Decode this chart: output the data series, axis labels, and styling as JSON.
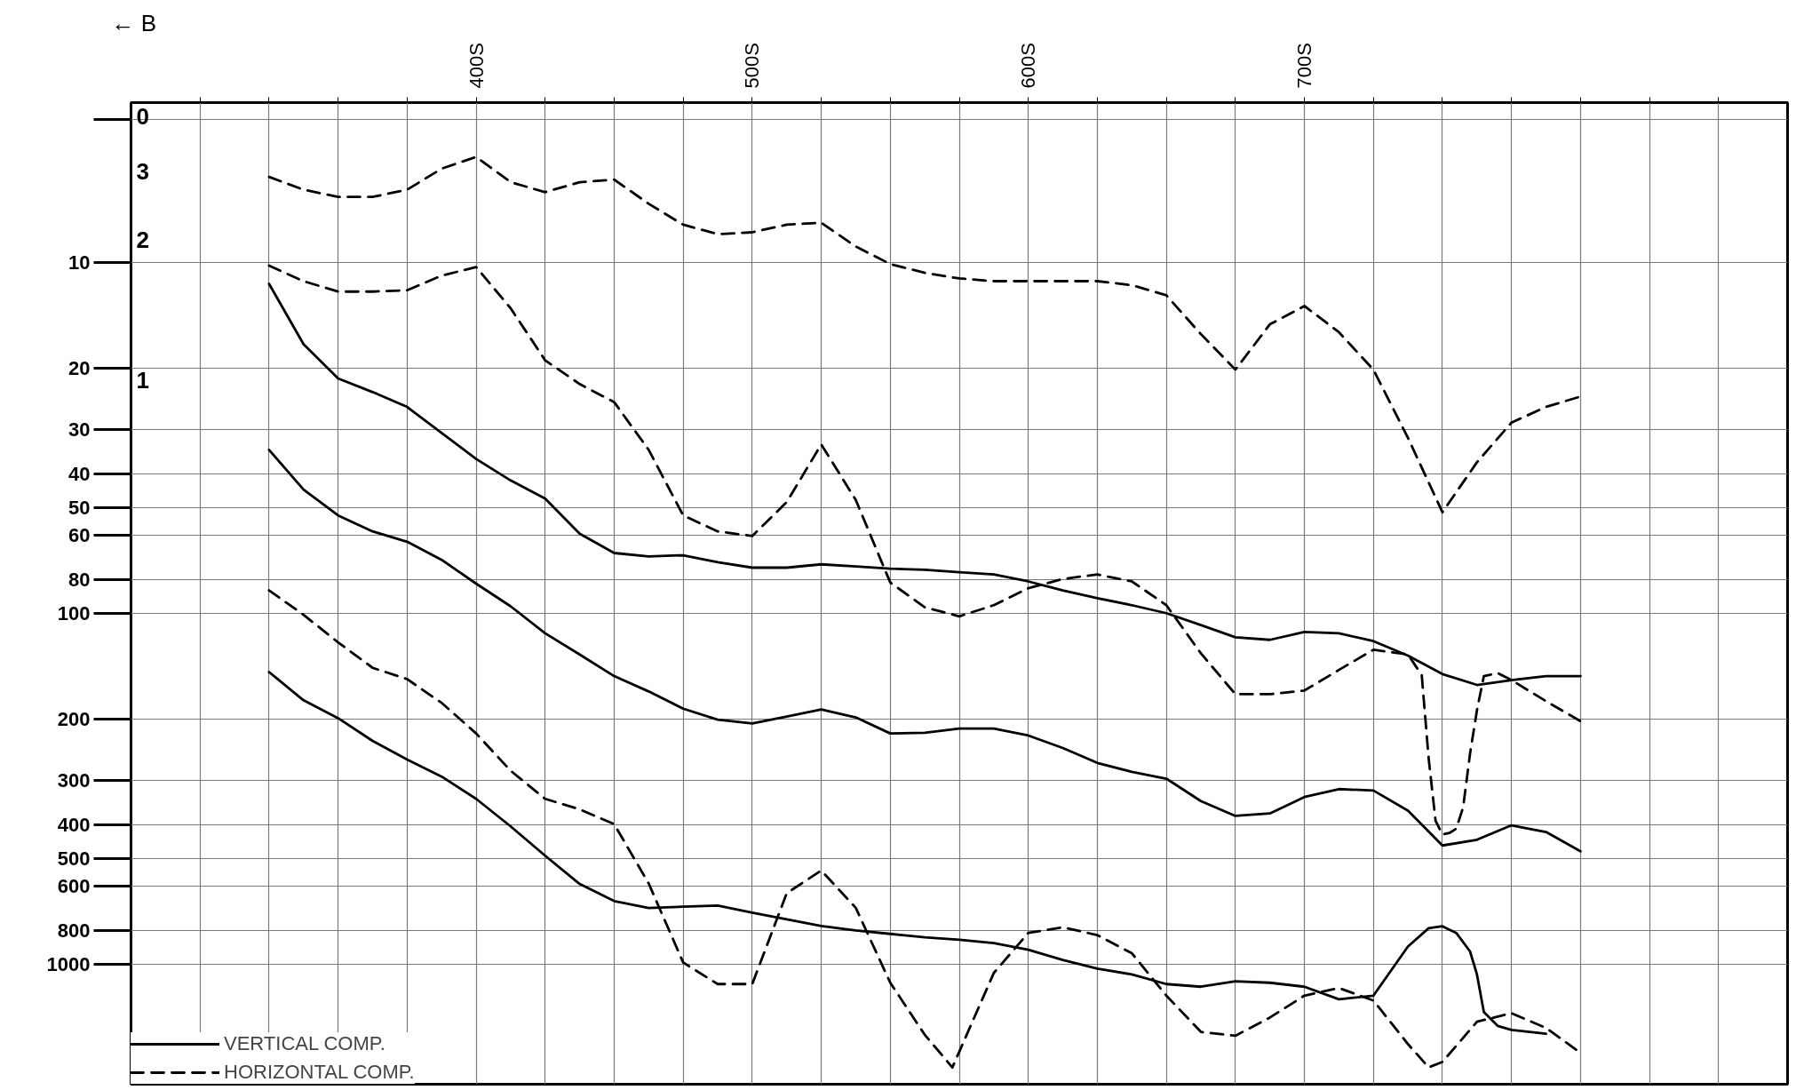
{
  "chart_data": {
    "type": "line",
    "xlim": [
      275,
      875
    ],
    "ylim": [
      2200,
      3.5
    ],
    "log": "y",
    "grid": true,
    "legend": "bottom left",
    "xticks": [
      {
        "value": 300,
        "label": null
      },
      {
        "value": 325,
        "label": null
      },
      {
        "value": 350,
        "label": null
      },
      {
        "value": 375,
        "label": null
      },
      {
        "value": 400,
        "label": "400S"
      },
      {
        "value": 425,
        "label": null
      },
      {
        "value": 450,
        "label": null
      },
      {
        "value": 475,
        "label": null
      },
      {
        "value": 500,
        "label": "500S"
      },
      {
        "value": 525,
        "label": null
      },
      {
        "value": 550,
        "label": null
      },
      {
        "value": 575,
        "label": null
      },
      {
        "value": 600,
        "label": "600S"
      },
      {
        "value": 625,
        "label": null
      },
      {
        "value": 650,
        "label": null
      },
      {
        "value": 675,
        "label": null
      },
      {
        "value": 700,
        "label": "700S"
      },
      {
        "value": 725,
        "label": null
      },
      {
        "value": 750,
        "label": null
      },
      {
        "value": 775,
        "label": null
      },
      {
        "value": 800,
        "label": null
      },
      {
        "value": 825,
        "label": null
      },
      {
        "value": 850,
        "label": null
      }
    ],
    "yticks": [
      {
        "value": 3.9,
        "label": null
      },
      10,
      20,
      30,
      40,
      50,
      60,
      80,
      100,
      200,
      300,
      400,
      500,
      600,
      800,
      1000
    ],
    "annotations": [
      "← B",
      "0",
      "3",
      "2",
      "1"
    ],
    "series": [
      {
        "name": "VERTICAL COMP.",
        "color": "#000000",
        "line_style": "solid",
        "x": [
          325,
          337.5,
          350,
          362.5,
          375,
          387.5,
          400,
          412.5,
          425,
          437.5,
          450,
          462.5,
          475,
          487.5,
          500,
          512.5,
          525,
          537.5,
          550,
          562.5,
          575,
          587.5,
          600,
          612.5,
          625,
          637.5,
          650,
          662.5,
          675,
          687.5,
          700,
          712.5,
          725,
          737.5,
          750,
          762.5,
          775,
          787.5,
          800
        ],
        "values": [
          11.5,
          17.1,
          21.4,
          23.4,
          25.8,
          30.6,
          36.3,
          41.8,
          47.1,
          59.3,
          67.3,
          68.8,
          68.3,
          71.5,
          74.1,
          74.1,
          72.5,
          73.5,
          74.6,
          75.1,
          76.3,
          77.5,
          81.1,
          86.0,
          90.6,
          94.8,
          99.9,
          108,
          117,
          119,
          113,
          114,
          120,
          132,
          149,
          160,
          155,
          151,
          151
        ]
      },
      {
        "color": "#000000",
        "line_style": "solid",
        "x": [
          325,
          337.5,
          350,
          362.5,
          375,
          387.5,
          400,
          412.5,
          425,
          437.5,
          450,
          462.5,
          475,
          487.5,
          500,
          512.5,
          525,
          537.5,
          550,
          562.5,
          575,
          587.5,
          600,
          612.5,
          625,
          637.5,
          650,
          662.5,
          675,
          687.5,
          700,
          712.5,
          725,
          737.5,
          750,
          762.5,
          775,
          787.5,
          800
        ],
        "values": [
          34.2,
          44.4,
          52.6,
          58.4,
          62.5,
          70.4,
          82.3,
          95.5,
          114,
          131,
          151,
          167,
          187,
          201,
          206,
          197,
          188,
          198,
          220,
          219,
          213,
          213,
          223,
          242,
          267,
          283,
          296,
          343,
          378,
          372,
          334,
          317,
          320,
          365,
          459,
          442,
          402,
          420,
          477
        ]
      },
      {
        "color": "#000000",
        "line_style": "solid",
        "x": [
          325,
          337.5,
          350,
          362.5,
          375,
          387.5,
          400,
          412.5,
          425,
          437.5,
          450,
          462.5,
          475,
          487.5,
          500,
          512.5,
          525,
          537.5,
          550,
          562.5,
          575,
          587.5,
          600,
          612.5,
          625,
          637.5,
          650,
          662.5,
          675,
          687.5,
          700,
          712.5,
          725,
          737.5,
          745,
          750,
          755,
          760,
          762.5,
          765,
          770,
          775,
          787.5
        ],
        "values": [
          147,
          177,
          199,
          231,
          261,
          292,
          338,
          405,
          491,
          591,
          661,
          692,
          686,
          681,
          713,
          745,
          779,
          802,
          820,
          839,
          852,
          871,
          910,
          973,
          1030,
          1070,
          1140,
          1160,
          1120,
          1130,
          1160,
          1260,
          1230,
          891,
          790,
          780,
          815,
          920,
          1070,
          1370,
          1500,
          1540,
          1580
        ]
      },
      {
        "name": "HORIZONTAL COMP.",
        "color": "#000000",
        "line_style": "dashed",
        "x": [
          325,
          337.5,
          350,
          362.5,
          375,
          387.5,
          400,
          412.5,
          425,
          437.5,
          450,
          462.5,
          475,
          487.5,
          500,
          512.5,
          525,
          537.5,
          550,
          562.5,
          575,
          587.5,
          600,
          612.5,
          625,
          637.5,
          650,
          662.5,
          675,
          687.5,
          700,
          712.5,
          725,
          737.5,
          750,
          762.5,
          775,
          787.5,
          800
        ],
        "values": [
          5.7,
          6.2,
          6.5,
          6.5,
          6.2,
          5.4,
          5.0,
          5.9,
          6.3,
          5.9,
          5.8,
          6.8,
          7.8,
          8.3,
          8.2,
          7.8,
          7.7,
          9.0,
          10.1,
          10.7,
          11.1,
          11.3,
          11.3,
          11.3,
          11.3,
          11.6,
          12.4,
          16.0,
          20.2,
          15.0,
          13.3,
          15.8,
          20.2,
          31.6,
          51.5,
          37.1,
          28.6,
          25.8,
          24.1
        ]
      },
      {
        "color": "#000000",
        "line_style": "dashed",
        "x": [
          325,
          337.5,
          350,
          362.5,
          375,
          387.5,
          400,
          412.5,
          425,
          437.5,
          450,
          462.5,
          475,
          487.5,
          500,
          512.5,
          525,
          537.5,
          550,
          562.5,
          575,
          587.5,
          600,
          612.5,
          625,
          637.5,
          650,
          662.5,
          675,
          687.5,
          700,
          712.5,
          725,
          737.5,
          742.5,
          745,
          747.5,
          750,
          752.5,
          755,
          757.5,
          760,
          762.5,
          765,
          770,
          775,
          787.5,
          800
        ],
        "values": [
          10.2,
          11.3,
          12.1,
          12.1,
          12.0,
          10.9,
          10.3,
          13.5,
          19.0,
          22.2,
          25.0,
          34.2,
          52.6,
          58.4,
          60.2,
          48.2,
          33.0,
          47.5,
          81.7,
          96.1,
          102,
          94.8,
          84.8,
          79.8,
          77.5,
          81.1,
          94.8,
          130,
          170,
          170,
          166,
          145,
          127,
          131,
          150,
          259,
          390,
          427,
          423,
          411,
          357,
          251,
          189,
          151,
          148,
          155,
          178,
          203
        ]
      },
      {
        "color": "#000000",
        "line_style": "dashed",
        "x": [
          325,
          337.5,
          350,
          362.5,
          375,
          387.5,
          400,
          412.5,
          425,
          437.5,
          450,
          462.5,
          475,
          487.5,
          500,
          512.5,
          525,
          537.5,
          550,
          562.5,
          572.5,
          587.5,
          600,
          612.5,
          625,
          637.5,
          650,
          662.5,
          675,
          687.5,
          700,
          712.5,
          725,
          737.5,
          745,
          750,
          762.5,
          775,
          787.5,
          800
        ],
        "values": [
          86,
          101,
          121,
          143,
          154,
          180,
          220,
          281,
          338,
          362,
          399,
          589,
          990,
          1140,
          1140,
          628,
          541,
          691,
          1130,
          1590,
          1970,
          1060,
          815,
          785,
          827,
          931,
          1230,
          1560,
          1600,
          1420,
          1230,
          1170,
          1270,
          1690,
          1970,
          1900,
          1460,
          1380,
          1520,
          1790
        ]
      }
    ]
  }
}
